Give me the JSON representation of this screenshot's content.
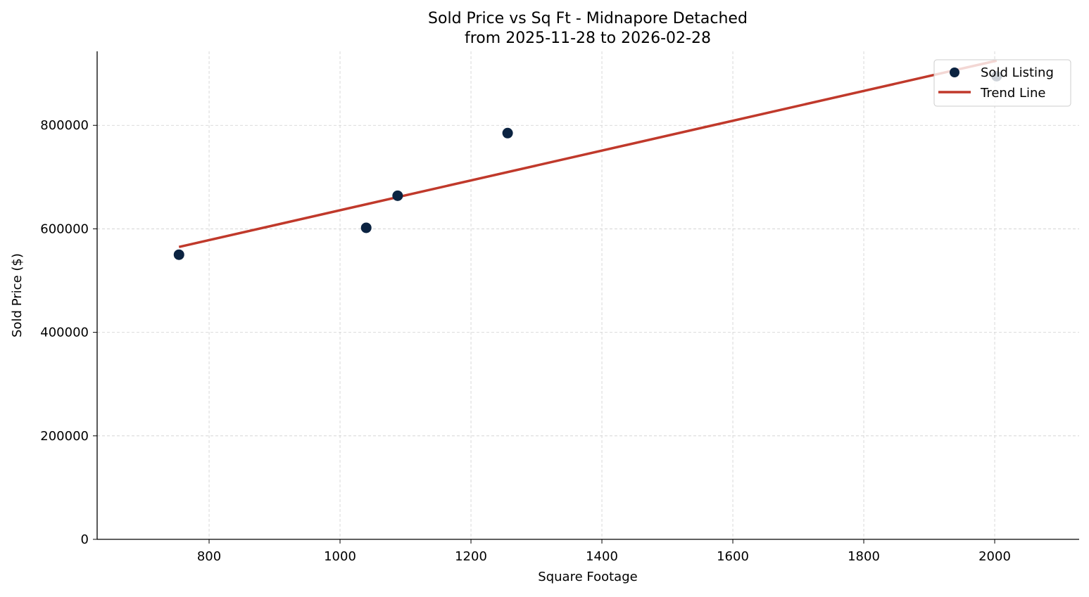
{
  "chart_data": {
    "type": "scatter",
    "title": "Sold Price vs Sq Ft - Midnapore Detached",
    "subtitle": "from 2025-11-28 to 2026-02-28",
    "xlabel": "Square Footage",
    "ylabel": "Sold Price ($)",
    "xlim": [
      629,
      2129
    ],
    "ylim": [
      0,
      943000
    ],
    "xticks": [
      800,
      1000,
      1200,
      1400,
      1600,
      1800,
      2000
    ],
    "yticks": [
      0,
      200000,
      400000,
      600000,
      800000
    ],
    "grid": true,
    "legend_position": "top-right",
    "series": [
      {
        "name": "Sold Listing",
        "kind": "scatter",
        "color": "#0b2341",
        "points": [
          [
            754,
            550000
          ],
          [
            1040,
            602000
          ],
          [
            1088,
            664000
          ],
          [
            1256,
            785000
          ],
          [
            2003,
            895000
          ]
        ]
      },
      {
        "name": "Trend Line",
        "kind": "line",
        "color": "#c0392b",
        "points": [
          [
            754,
            565000
          ],
          [
            2003,
            925000
          ]
        ]
      }
    ]
  }
}
